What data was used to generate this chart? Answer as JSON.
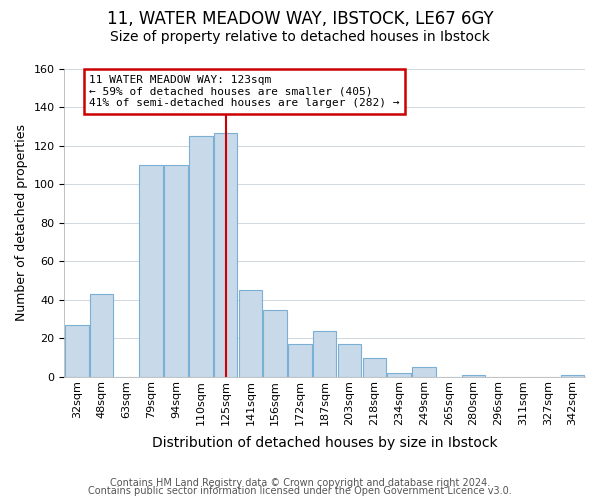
{
  "title": "11, WATER MEADOW WAY, IBSTOCK, LE67 6GY",
  "subtitle": "Size of property relative to detached houses in Ibstock",
  "xlabel": "Distribution of detached houses by size in Ibstock",
  "ylabel": "Number of detached properties",
  "categories": [
    "32sqm",
    "48sqm",
    "63sqm",
    "79sqm",
    "94sqm",
    "110sqm",
    "125sqm",
    "141sqm",
    "156sqm",
    "172sqm",
    "187sqm",
    "203sqm",
    "218sqm",
    "234sqm",
    "249sqm",
    "265sqm",
    "280sqm",
    "296sqm",
    "311sqm",
    "327sqm",
    "342sqm"
  ],
  "values": [
    27,
    43,
    0,
    110,
    110,
    125,
    127,
    45,
    35,
    17,
    24,
    17,
    10,
    2,
    5,
    0,
    1,
    0,
    0,
    0,
    1
  ],
  "bar_color": "#c8daea",
  "bar_edge_color": "#7bafd4",
  "grid_color": "#d0d8e0",
  "vline_x_index": 6,
  "vline_color": "#cc0000",
  "annotation_text": "11 WATER MEADOW WAY: 123sqm\n← 59% of detached houses are smaller (405)\n41% of semi-detached houses are larger (282) →",
  "annotation_box_edge_color": "#cc0000",
  "annotation_box_face_color": "#ffffff",
  "ylim": [
    0,
    160
  ],
  "footer_line1": "Contains HM Land Registry data © Crown copyright and database right 2024.",
  "footer_line2": "Contains public sector information licensed under the Open Government Licence v3.0.",
  "title_fontsize": 12,
  "subtitle_fontsize": 10,
  "xlabel_fontsize": 10,
  "ylabel_fontsize": 9,
  "tick_fontsize": 8,
  "footer_fontsize": 7,
  "background_color": "#ffffff"
}
